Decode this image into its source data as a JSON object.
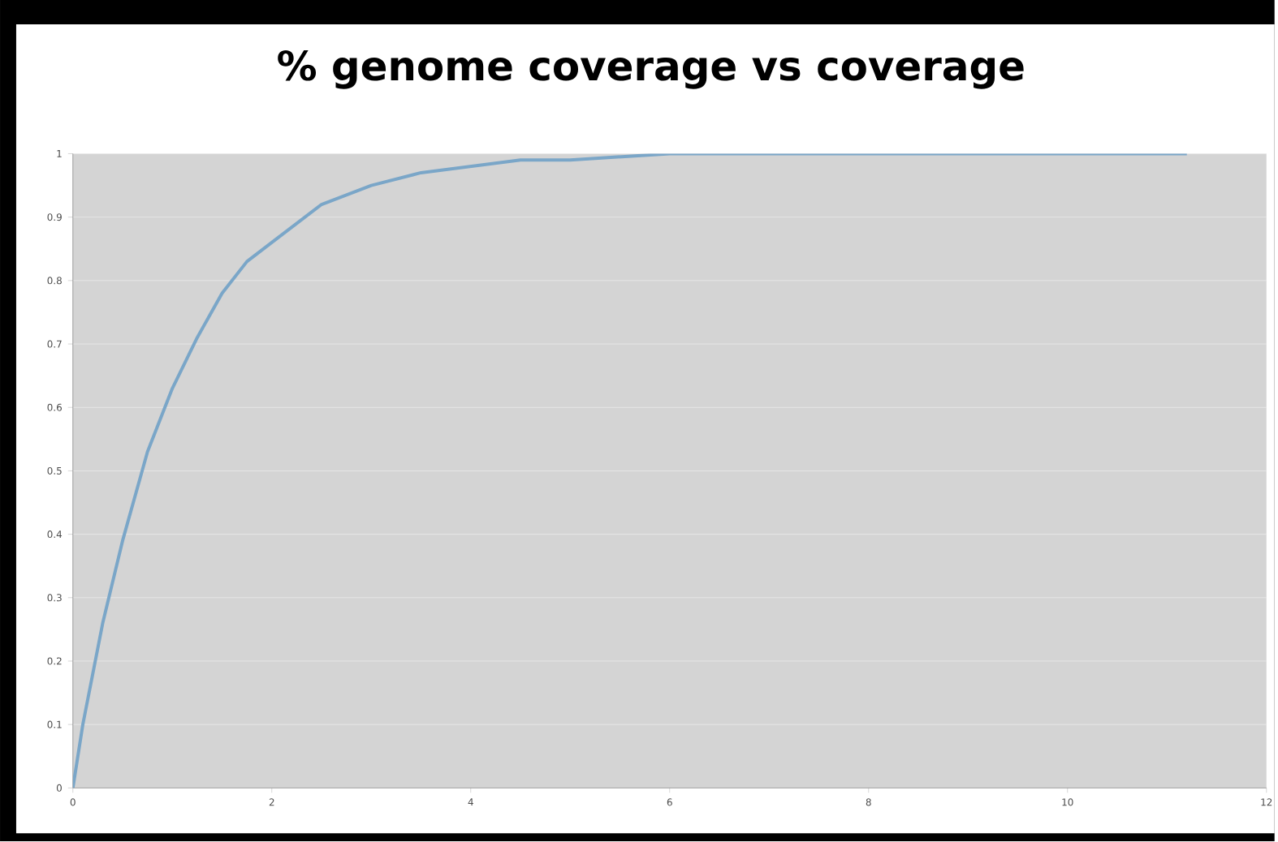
{
  "chart_data": {
    "type": "line",
    "title": "% genome coverage vs coverage",
    "x": [
      0,
      0.1,
      0.2,
      0.3,
      0.5,
      0.75,
      1,
      1.25,
      1.5,
      1.75,
      2,
      2.5,
      3,
      3.5,
      4,
      4.5,
      5,
      6,
      7,
      8,
      9,
      10,
      11.2
    ],
    "values": [
      0,
      0.1,
      0.18,
      0.26,
      0.39,
      0.53,
      0.63,
      0.71,
      0.78,
      0.83,
      0.86,
      0.92,
      0.95,
      0.97,
      0.98,
      0.99,
      0.99,
      1,
      1,
      1,
      1,
      1,
      1
    ],
    "color": "#7aa6c8",
    "xlim": [
      0,
      12
    ],
    "ylim": [
      0,
      1
    ],
    "xticks": [
      0,
      2,
      4,
      6,
      8,
      10,
      12
    ],
    "yticks": [
      0,
      0.1,
      0.2,
      0.3,
      0.4,
      0.5,
      0.6,
      0.7,
      0.8,
      0.9,
      1
    ],
    "grid": "y",
    "marker": "none",
    "line_style": "solid"
  }
}
